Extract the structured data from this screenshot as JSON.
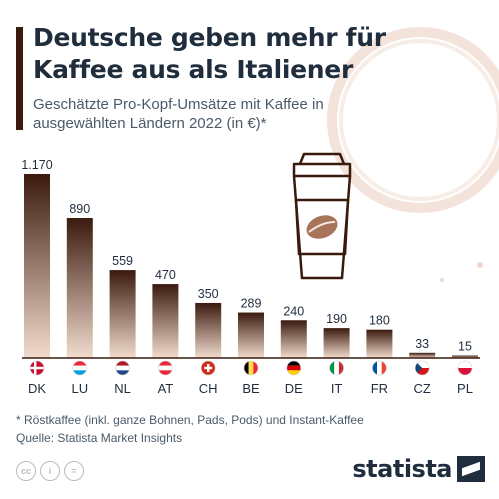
{
  "header": {
    "title": "Deutsche geben mehr für Kaffee aus als Italiener",
    "subtitle": "Geschätzte Pro-Kopf-Umsätze mit Kaffee in ausgewählten Ländern 2022 (in €)*"
  },
  "footer": {
    "footnote": "* Röstkaffee (inkl. ganze Bohnen, Pads, Pods) und Instant-Kaffee",
    "source": "Quelle: Statista Market Insights",
    "brand": "statista",
    "license_icons": [
      "cc-icon",
      "attribution-icon",
      "no-derivatives-icon"
    ]
  },
  "colors": {
    "bar_top": "#3b1a0e",
    "bar_bottom": "#f2dccd",
    "text": "#1f2d3d",
    "baseline": "#3b1a0e"
  },
  "chart_data": {
    "type": "bar",
    "categories": [
      "DK",
      "LU",
      "NL",
      "AT",
      "CH",
      "BE",
      "DE",
      "IT",
      "FR",
      "CZ",
      "PL"
    ],
    "values": [
      1170,
      890,
      559,
      470,
      350,
      289,
      240,
      190,
      180,
      33,
      15
    ],
    "value_labels": [
      "1.170",
      "890",
      "559",
      "470",
      "350",
      "289",
      "240",
      "190",
      "180",
      "33",
      "15"
    ],
    "flags": [
      "flag-denmark-icon",
      "flag-luxembourg-icon",
      "flag-netherlands-icon",
      "flag-austria-icon",
      "flag-switzerland-icon",
      "flag-belgium-icon",
      "flag-germany-icon",
      "flag-italy-icon",
      "flag-france-icon",
      "flag-czechia-icon",
      "flag-poland-icon"
    ],
    "title": "Deutsche geben mehr für Kaffee aus als Italiener",
    "subtitle": "Geschätzte Pro-Kopf-Umsätze mit Kaffee in ausgewählten Ländern 2022 (in €)*",
    "ylim": [
      0,
      1170
    ],
    "grid": false,
    "legend": "none"
  }
}
